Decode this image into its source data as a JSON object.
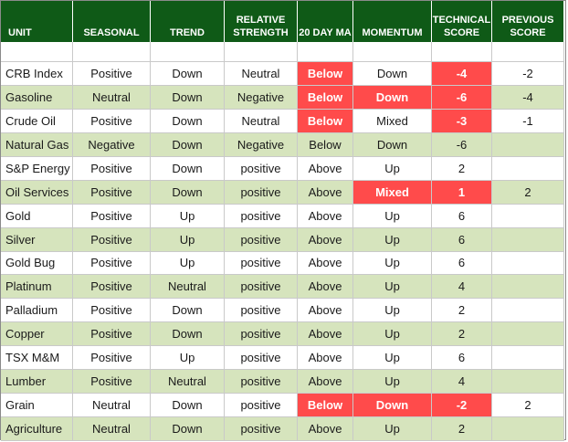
{
  "chart_data": {
    "type": "table",
    "colors": {
      "header_bg": "#0f5a17",
      "header_text": "#ffffff",
      "row_alt_bg": "#d6e4bd",
      "row_bg": "#ffffff",
      "highlight_red": "#ff4b4b"
    },
    "columns": [
      "UNIT",
      "SEASONAL",
      "TREND",
      "RELATIVE STRENGTH",
      "20 DAY MA",
      "MOMENTUM",
      "TECHNICAL SCORE",
      "PREVIOUS SCORE"
    ],
    "rows": [
      [
        "CRB Index",
        "Positive",
        "Down",
        "Neutral",
        "Below",
        "Down",
        "-4",
        "-2"
      ],
      [
        "Gasoline",
        "Neutral",
        "Down",
        "Negative",
        "Below",
        "Down",
        "-6",
        "-4"
      ],
      [
        "Crude Oil",
        "Positive",
        "Down",
        "Neutral",
        "Below",
        "Mixed",
        "-3",
        "-1"
      ],
      [
        "Natural Gas",
        "Negative",
        "Down",
        "Negative",
        "Below",
        "Down",
        "-6",
        ""
      ],
      [
        "S&P Energy",
        "Positive",
        "Down",
        "positive",
        "Above",
        "Up",
        "2",
        ""
      ],
      [
        "Oil Services",
        "Positive",
        "Down",
        "positive",
        "Above",
        "Mixed",
        "1",
        "2"
      ],
      [
        "Gold",
        "Positive",
        "Up",
        "positive",
        "Above",
        "Up",
        "6",
        ""
      ],
      [
        "Silver",
        "Positive",
        "Up",
        "positive",
        "Above",
        "Up",
        "6",
        ""
      ],
      [
        "Gold Bug",
        "Positive",
        "Up",
        "positive",
        "Above",
        "Up",
        "6",
        ""
      ],
      [
        "Platinum",
        "Positive",
        "Neutral",
        "positive",
        "Above",
        "Up",
        "4",
        ""
      ],
      [
        "Palladium",
        "Positive",
        "Down",
        "positive",
        "Above",
        "Up",
        "2",
        ""
      ],
      [
        "Copper",
        "Positive",
        "Down",
        "positive",
        "Above",
        "Up",
        "2",
        ""
      ],
      [
        "TSX M&M",
        "Positive",
        "Up",
        "positive",
        "Above",
        "Up",
        "6",
        ""
      ],
      [
        "Lumber",
        "Positive",
        "Neutral",
        "positive",
        "Above",
        "Up",
        "4",
        ""
      ],
      [
        "Grain",
        "Neutral",
        "Down",
        "positive",
        "Below",
        "Down",
        "-2",
        "2"
      ],
      [
        "Agriculture",
        "Neutral",
        "Down",
        "positive",
        "Above",
        "Up",
        "2",
        ""
      ]
    ],
    "highlighted_cells": [
      [
        0,
        4
      ],
      [
        0,
        6
      ],
      [
        1,
        4
      ],
      [
        1,
        5
      ],
      [
        1,
        6
      ],
      [
        2,
        4
      ],
      [
        2,
        6
      ],
      [
        5,
        5
      ],
      [
        5,
        6
      ],
      [
        14,
        4
      ],
      [
        14,
        5
      ],
      [
        14,
        6
      ]
    ]
  }
}
